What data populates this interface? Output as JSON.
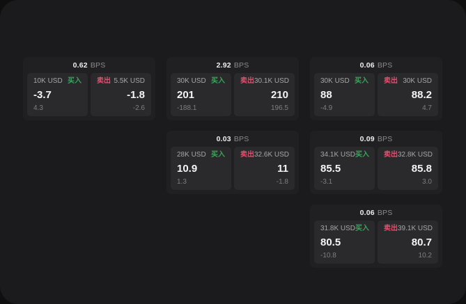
{
  "labels": {
    "buy": "买入",
    "sell": "卖出",
    "bps_unit": "BPS"
  },
  "colors": {
    "buy": "#3da35b",
    "sell": "#d9536e",
    "card": "#202022",
    "panel": "#2a2a2c",
    "surface": "#1b1b1d"
  },
  "cards": [
    {
      "bps": "0.62",
      "buy": {
        "amount": "10K USD",
        "value": "-3.7",
        "delta": "4.3"
      },
      "sell": {
        "amount": "5.5K USD",
        "value": "-1.8",
        "delta": "-2.6"
      }
    },
    {
      "bps": "2.92",
      "buy": {
        "amount": "30K USD",
        "value": "201",
        "delta": "-188.1"
      },
      "sell": {
        "amount": "30.1K USD",
        "value": "210",
        "delta": "196.5"
      }
    },
    {
      "bps": "0.06",
      "buy": {
        "amount": "30K USD",
        "value": "88",
        "delta": "-4.9"
      },
      "sell": {
        "amount": "30K USD",
        "value": "88.2",
        "delta": "4.7"
      }
    },
    {
      "bps": "0.03",
      "buy": {
        "amount": "28K USD",
        "value": "10.9",
        "delta": "1.3"
      },
      "sell": {
        "amount": "32.6K USD",
        "value": "11",
        "delta": "-1.8"
      }
    },
    {
      "bps": "0.09",
      "buy": {
        "amount": "34.1K USD",
        "value": "85.5",
        "delta": "-3.1"
      },
      "sell": {
        "amount": "32.8K USD",
        "value": "85.8",
        "delta": "3.0"
      }
    },
    {
      "bps": "0.06",
      "buy": {
        "amount": "31.8K USD",
        "value": "80.5",
        "delta": "-10.8"
      },
      "sell": {
        "amount": "39.1K USD",
        "value": "80.7",
        "delta": "10.2"
      }
    }
  ]
}
